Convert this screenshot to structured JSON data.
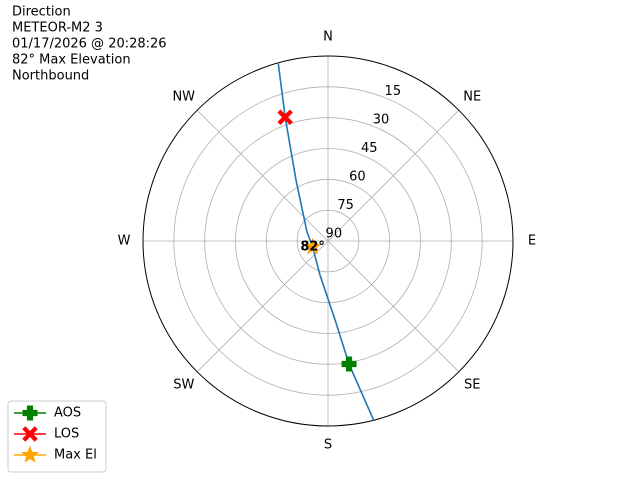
{
  "chart_data": {
    "type": "polar",
    "text_lines": [
      "Direction",
      "METEOR-M2 3",
      "01/17/2026 @ 20:28:26",
      "82° Max Elevation",
      "Northbound"
    ],
    "rlim": [
      90,
      0
    ],
    "rticks": [
      15,
      30,
      45,
      60,
      75,
      90
    ],
    "thetaticks": [
      {
        "value": 0,
        "label": "N"
      },
      {
        "value": 45,
        "label": "NE"
      },
      {
        "value": 90,
        "label": "E"
      },
      {
        "value": 135,
        "label": "SE"
      },
      {
        "value": 180,
        "label": "S"
      },
      {
        "value": 225,
        "label": "SW"
      },
      {
        "value": 270,
        "label": "W"
      },
      {
        "value": 315,
        "label": "NW"
      }
    ],
    "grid": true,
    "track": {
      "color": "#1f77b4",
      "azimuth": [
        344.4,
        340.9,
        332.3,
        293.2,
        249,
        193.2,
        174.9,
        170.3,
        165.7
      ],
      "elevation": [
        0,
        26.3,
        56.5,
        78.9,
        82,
        73.0,
        51.4,
        29.3,
        0
      ]
    },
    "markers": [
      {
        "name": "AOS",
        "color": "green",
        "symbol": "plus",
        "azimuth": 170.3,
        "elevation": 29.3
      },
      {
        "name": "LOS",
        "color": "red",
        "symbol": "x",
        "azimuth": 340.9,
        "elevation": 26.3
      },
      {
        "name": "Max El",
        "color": "orange",
        "symbol": "star",
        "azimuth": 249,
        "elevation": 82
      }
    ],
    "annotation": {
      "text": "82°",
      "azimuth": 249,
      "elevation": 82
    },
    "legend": "lower left"
  }
}
